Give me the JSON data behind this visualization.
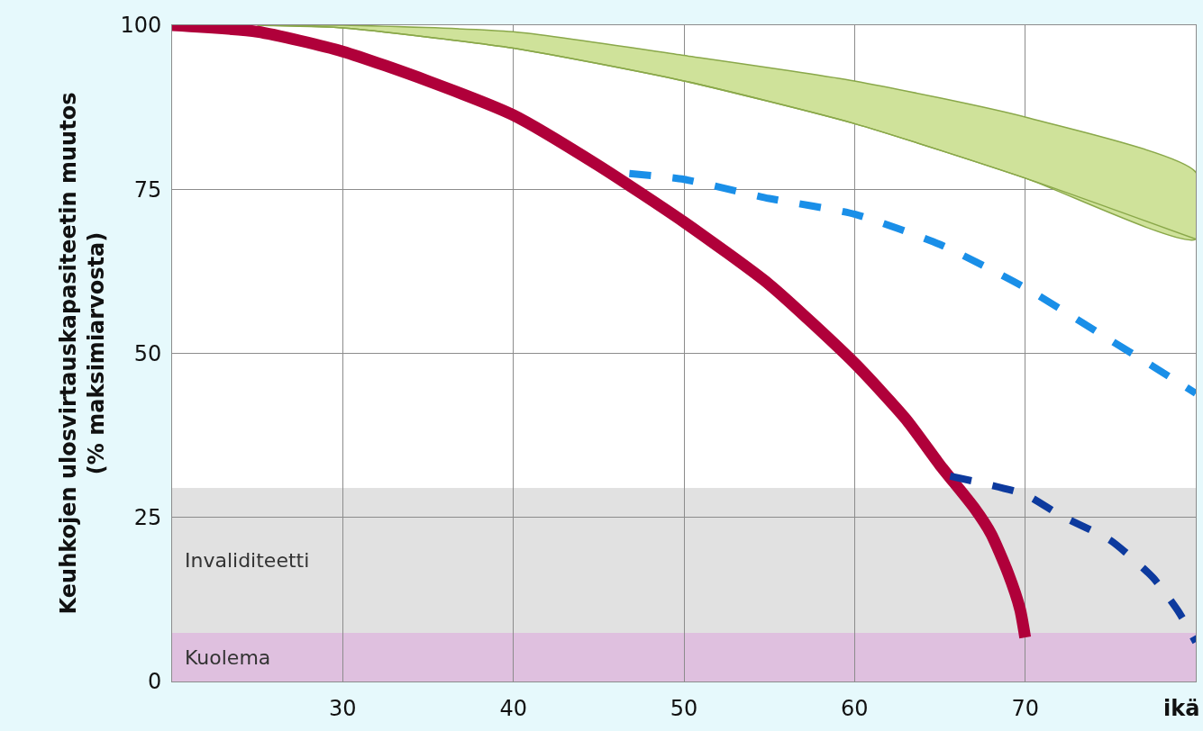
{
  "chart_data": {
    "type": "line",
    "xlabel": "ikä",
    "ylabel": "Keuhkojen ulosvirtauskapasiteetin muutos\n(% maksimiarvosta)",
    "xlim": [
      20,
      80
    ],
    "xticks": [
      30,
      40,
      50,
      60,
      70
    ],
    "ylim": [
      0,
      100
    ],
    "yticks": [
      0,
      25,
      50,
      75,
      100
    ],
    "grid": true,
    "bands": [
      {
        "axis": "y",
        "from": 7.4,
        "to": 29.5,
        "label": "Invaliditeetti",
        "color": "#e1e1e1"
      },
      {
        "axis": "y",
        "from": 0,
        "to": 7.4,
        "label": "Kuolema",
        "color": "#dfc0df"
      }
    ],
    "series": [
      {
        "color": "#8aa84a",
        "x": [
          25,
          30,
          40,
          50,
          60,
          70,
          80
        ],
        "values": [
          100,
          99.6,
          96.5,
          91.5,
          85,
          76.7,
          67.4
        ]
      },
      {
        "type": "area",
        "color": "#cfe29a",
        "x": [
          25,
          30,
          40,
          50,
          60,
          70,
          80
        ],
        "values": [
          100,
          100,
          99,
          95.4,
          91.5,
          86,
          77.6
        ]
      },
      {
        "color": "#b0003a",
        "line_style": "solid",
        "x": [
          20,
          25,
          30,
          35,
          40,
          45,
          50,
          55,
          60,
          63,
          65,
          67,
          68,
          69,
          69.7,
          70
        ],
        "values": [
          100,
          99,
          96,
          91.5,
          86.3,
          78.6,
          70,
          60.5,
          48.5,
          40,
          33,
          26.5,
          22.5,
          16.5,
          11,
          6.7
        ]
      },
      {
        "color": "#1a8fe8",
        "line_style": "dashed",
        "x": [
          46.8,
          50,
          55,
          60,
          65,
          70,
          75,
          77.5,
          80
        ],
        "values": [
          77.4,
          76.5,
          73.6,
          71.2,
          66.6,
          60,
          52,
          48,
          43.9
        ]
      },
      {
        "color": "#0d3a9e",
        "line_style": "dashed",
        "x": [
          65.6,
          70,
          72,
          75,
          77.5,
          79,
          80
        ],
        "values": [
          31.3,
          28.5,
          25.4,
          21.5,
          15.8,
          10.6,
          6
        ]
      }
    ]
  }
}
